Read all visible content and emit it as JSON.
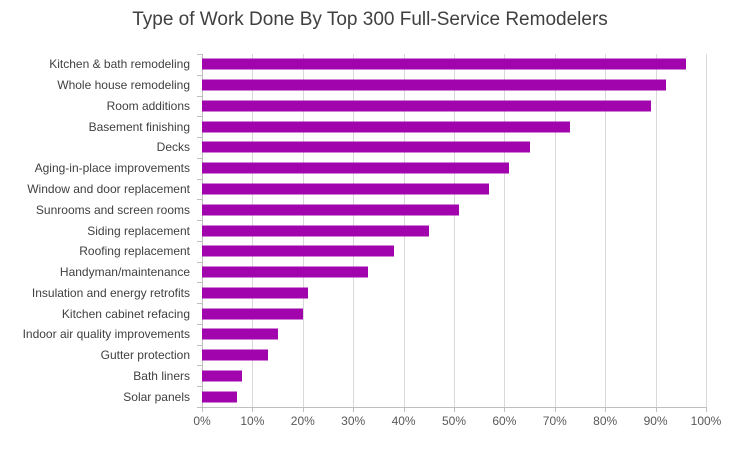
{
  "chart_data": {
    "type": "bar",
    "orientation": "horizontal",
    "title": "Type of Work Done By Top 300 Full-Service Remodelers",
    "categories": [
      "Kitchen & bath remodeling",
      "Whole house remodeling",
      "Room additions",
      "Basement finishing",
      "Decks",
      "Aging-in-place improvements",
      "Window and door replacement",
      "Sunrooms and screen rooms",
      "Siding replacement",
      "Roofing replacement",
      "Handyman/maintenance",
      "Insulation and energy retrofits",
      "Kitchen cabinet refacing",
      "Indoor air quality improvements",
      "Gutter protection",
      "Bath liners",
      "Solar panels"
    ],
    "values": [
      96,
      92,
      89,
      73,
      65,
      61,
      57,
      51,
      45,
      38,
      33,
      21,
      20,
      15,
      13,
      8,
      7
    ],
    "value_unit": "%",
    "xlabel": "",
    "ylabel": "",
    "xlim": [
      0,
      100
    ],
    "x_tick_step": 10,
    "x_tick_labels": [
      "0%",
      "10%",
      "20%",
      "30%",
      "40%",
      "50%",
      "60%",
      "70%",
      "80%",
      "90%",
      "100%"
    ],
    "grid": "vertical",
    "legend": "none",
    "colors": {
      "bar": "#a104ac",
      "title_text": "#404040",
      "category_label_text": "#404040",
      "tick_label_text": "#595959",
      "axis_line": "#bfbfbf",
      "gridline": "#d9d9d9",
      "background": "#ffffff"
    }
  }
}
